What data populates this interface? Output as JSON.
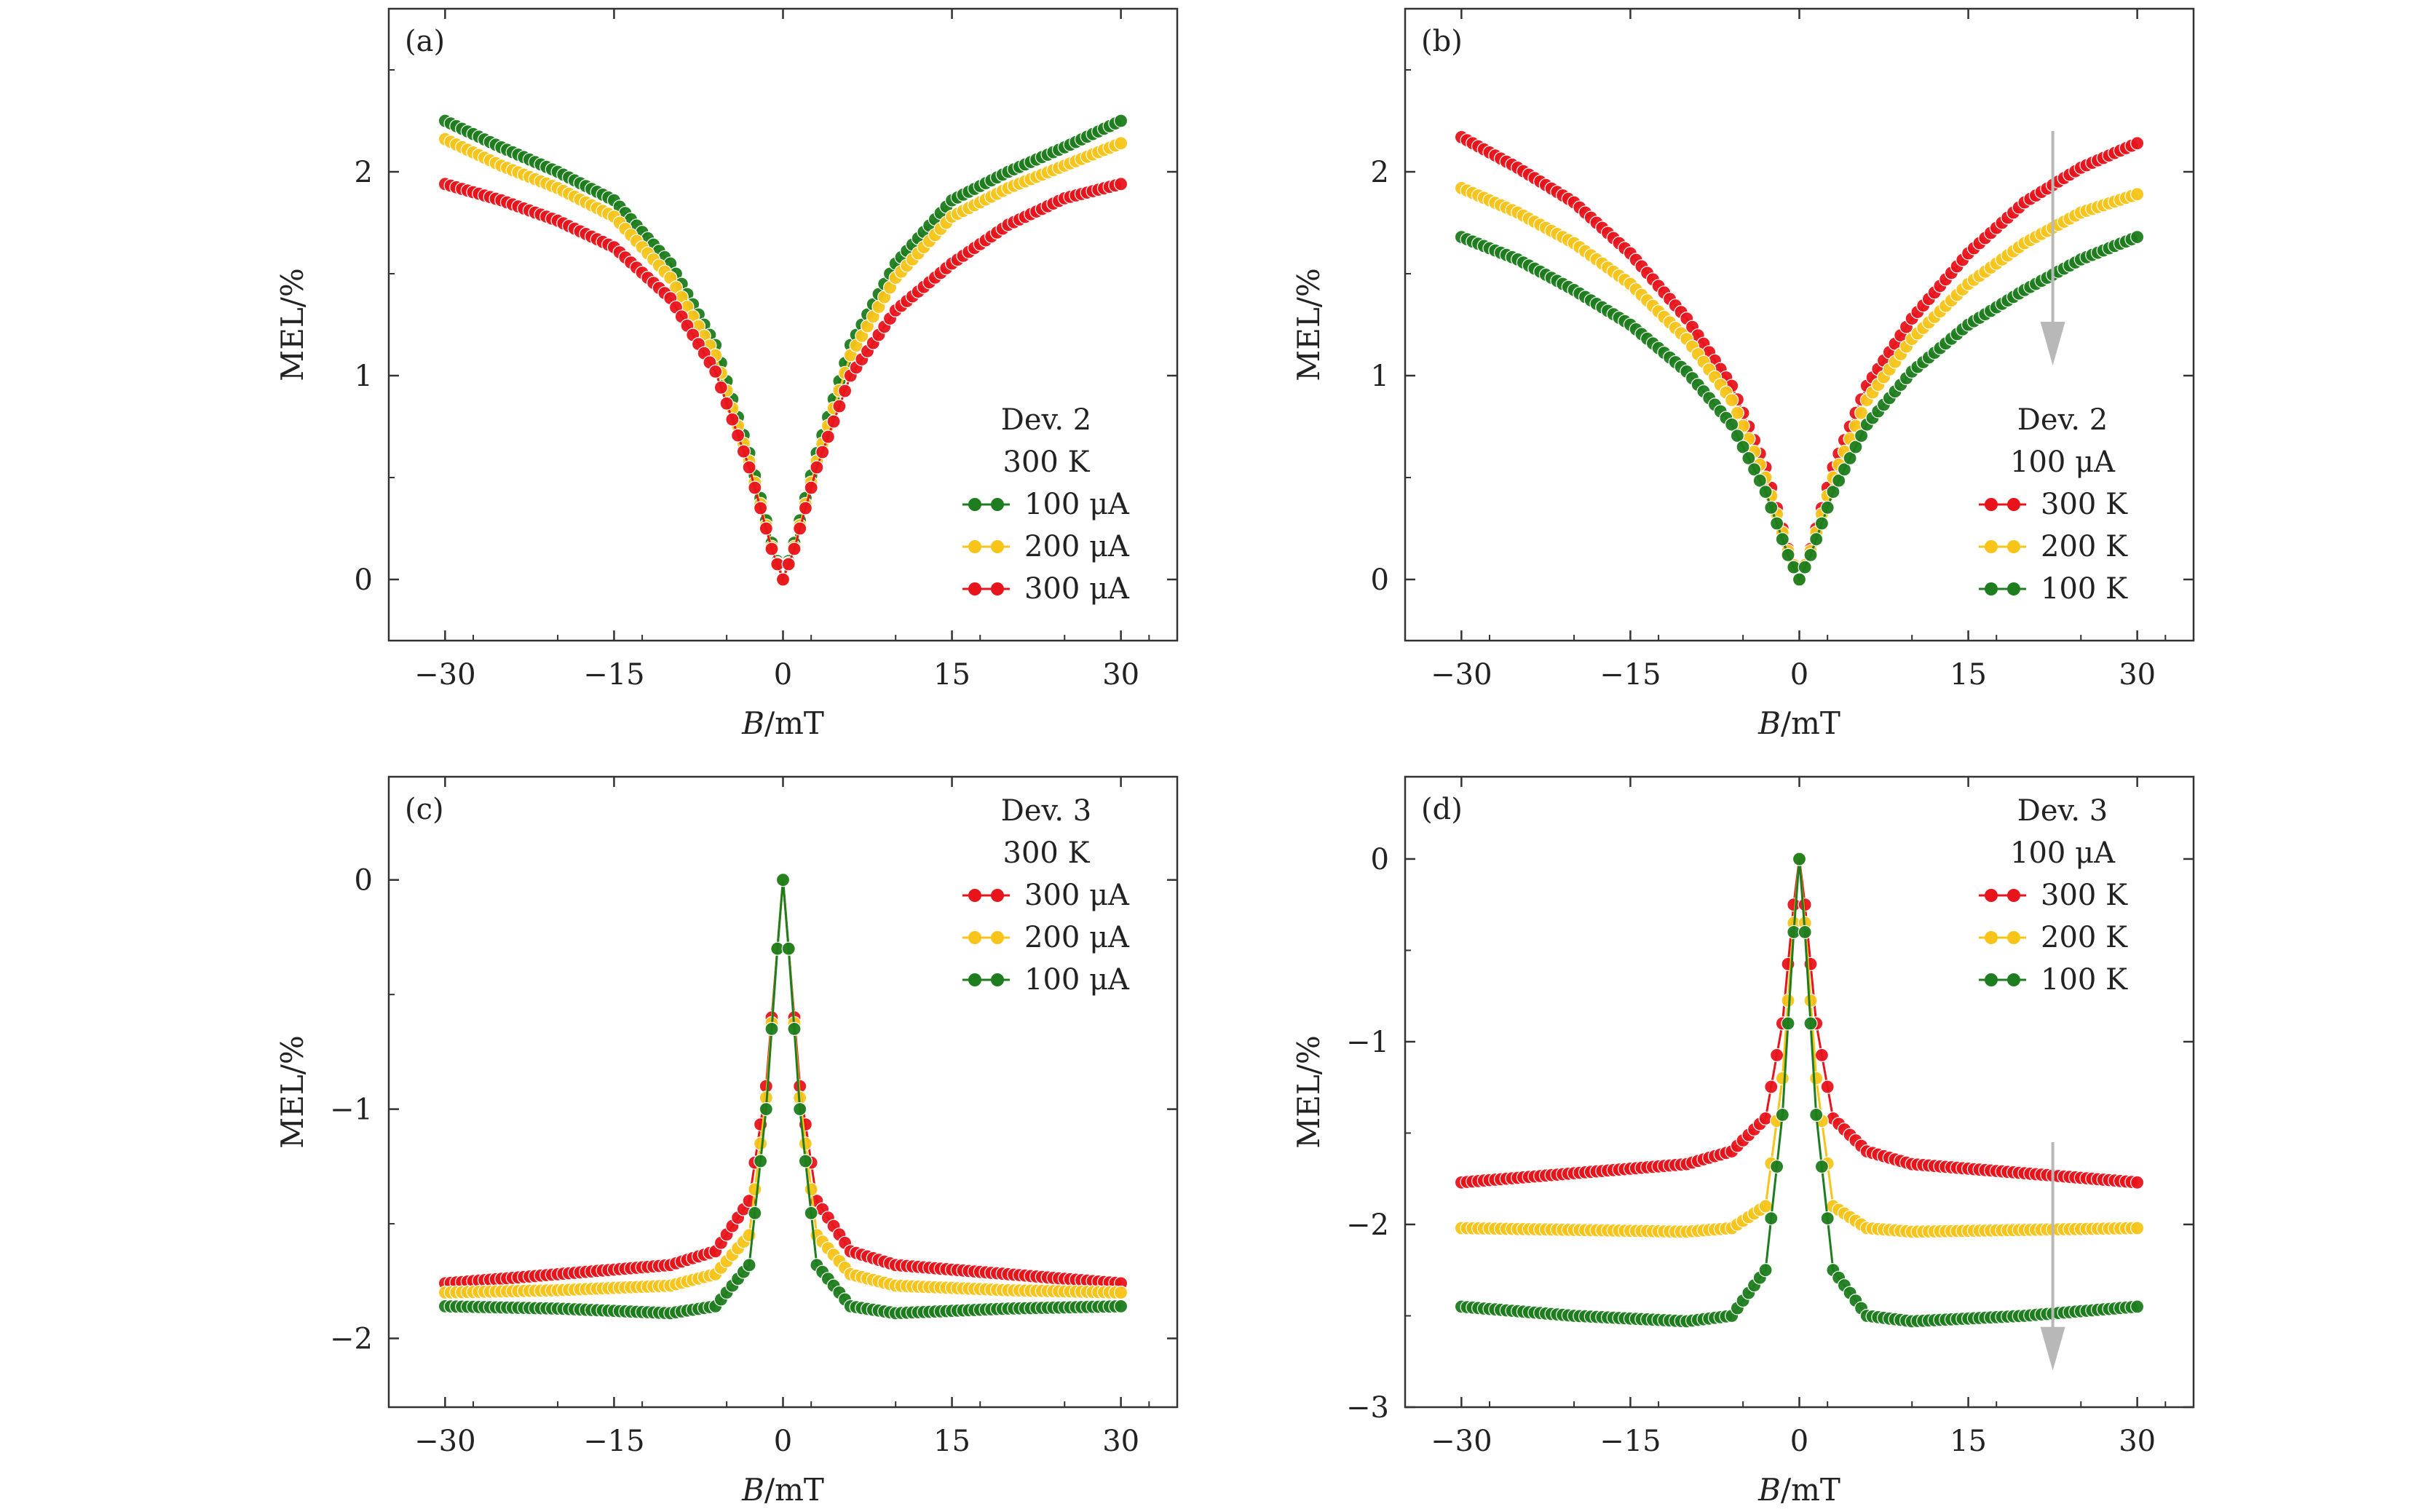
{
  "figure": {
    "series_colors": {
      "red": "#e8141b",
      "yellow": "#f7c41a",
      "green": "#1e7d1e"
    },
    "arrow_color": "#b8b8b8"
  },
  "chart_data": [
    {
      "type": "scatter",
      "panel_label": "(a)",
      "xlabel_italic": "B",
      "xlabel_rest": "/mT",
      "ylabel": "MEL/%",
      "xlim": [
        -35,
        35
      ],
      "ylim": [
        -0.3,
        2.8
      ],
      "xticks": [
        -30,
        -15,
        0,
        15,
        30
      ],
      "xtick_labels": [
        "−30",
        "−15",
        "0",
        "15",
        "30"
      ],
      "yticks": [
        0,
        1,
        2
      ],
      "ytick_labels": [
        "0",
        "1",
        "2"
      ],
      "legend_title": [
        "Dev. 2",
        "300 K"
      ],
      "legend_position": "bottom-right",
      "x": [
        -30,
        -25,
        -20,
        -15,
        -10,
        -6,
        -3,
        -1,
        0,
        1,
        3,
        6,
        10,
        15,
        20,
        25,
        30
      ],
      "series": [
        {
          "name": "100 μA",
          "color": "green",
          "values": [
            2.25,
            2.12,
            2.0,
            1.86,
            1.55,
            1.15,
            0.62,
            0.18,
            0.0,
            0.18,
            0.62,
            1.15,
            1.55,
            1.86,
            2.0,
            2.12,
            2.25
          ]
        },
        {
          "name": "200 μA",
          "color": "yellow",
          "values": [
            2.16,
            2.03,
            1.92,
            1.78,
            1.48,
            1.1,
            0.58,
            0.16,
            0.0,
            0.16,
            0.58,
            1.1,
            1.48,
            1.78,
            1.92,
            2.03,
            2.14
          ]
        },
        {
          "name": "300 μA",
          "color": "red",
          "values": [
            1.94,
            1.86,
            1.76,
            1.63,
            1.38,
            1.02,
            0.55,
            0.15,
            0.0,
            0.15,
            0.55,
            1.0,
            1.32,
            1.55,
            1.74,
            1.87,
            1.94
          ]
        }
      ],
      "arrow": false
    },
    {
      "type": "scatter",
      "panel_label": "(b)",
      "xlabel_italic": "B",
      "xlabel_rest": "/mT",
      "ylabel": "MEL/%",
      "xlim": [
        -35,
        35
      ],
      "ylim": [
        -0.3,
        2.8
      ],
      "xticks": [
        -30,
        -15,
        0,
        15,
        30
      ],
      "xtick_labels": [
        "−30",
        "−15",
        "0",
        "15",
        "30"
      ],
      "yticks": [
        0,
        1,
        2
      ],
      "ytick_labels": [
        "0",
        "1",
        "2"
      ],
      "legend_title": [
        "Dev. 2",
        "100 μA"
      ],
      "legend_position": "bottom-right",
      "x": [
        -30,
        -25,
        -20,
        -15,
        -10,
        -6,
        -3,
        -1,
        0,
        1,
        3,
        6,
        10,
        15,
        20,
        25,
        30
      ],
      "series": [
        {
          "name": "300 K",
          "color": "red",
          "values": [
            2.17,
            2.02,
            1.85,
            1.6,
            1.28,
            0.95,
            0.55,
            0.15,
            0.0,
            0.15,
            0.55,
            0.95,
            1.28,
            1.6,
            1.85,
            2.02,
            2.14
          ]
        },
        {
          "name": "200 K",
          "color": "yellow",
          "values": [
            1.92,
            1.8,
            1.65,
            1.45,
            1.18,
            0.88,
            0.5,
            0.14,
            0.0,
            0.14,
            0.5,
            0.88,
            1.18,
            1.45,
            1.65,
            1.8,
            1.89
          ]
        },
        {
          "name": "100 K",
          "color": "green",
          "values": [
            1.68,
            1.57,
            1.42,
            1.25,
            1.02,
            0.76,
            0.43,
            0.12,
            0.0,
            0.12,
            0.43,
            0.76,
            1.02,
            1.25,
            1.42,
            1.57,
            1.68
          ]
        }
      ],
      "arrow": true,
      "arrow_x": 22.5,
      "arrow_from": 2.2,
      "arrow_to": 1.05
    },
    {
      "type": "scatter",
      "panel_label": "(c)",
      "xlabel_italic": "B",
      "xlabel_rest": "/mT",
      "ylabel": "MEL/%",
      "xlim": [
        -35,
        35
      ],
      "ylim": [
        -2.3,
        0.45
      ],
      "xticks": [
        -30,
        -15,
        0,
        15,
        30
      ],
      "xtick_labels": [
        "−30",
        "−15",
        "0",
        "15",
        "30"
      ],
      "yticks": [
        -2,
        -1,
        0
      ],
      "ytick_labels": [
        "−2",
        "−1",
        "0"
      ],
      "legend_title": [
        "Dev. 3",
        "300 K"
      ],
      "legend_position": "top-right",
      "x": [
        -30,
        -20,
        -10,
        -6,
        -3,
        -1.5,
        -0.5,
        0,
        0.5,
        1.5,
        3,
        6,
        10,
        20,
        30
      ],
      "series": [
        {
          "name": "300 μA",
          "color": "red",
          "values": [
            -1.76,
            -1.72,
            -1.68,
            -1.62,
            -1.4,
            -0.9,
            -0.3,
            0.0,
            -0.3,
            -0.9,
            -1.4,
            -1.62,
            -1.68,
            -1.72,
            -1.76
          ]
        },
        {
          "name": "200 μA",
          "color": "yellow",
          "values": [
            -1.8,
            -1.79,
            -1.77,
            -1.72,
            -1.55,
            -0.95,
            -0.3,
            0.0,
            -0.3,
            -0.95,
            -1.55,
            -1.72,
            -1.77,
            -1.79,
            -1.8
          ]
        },
        {
          "name": "100 μA",
          "color": "green",
          "values": [
            -1.86,
            -1.87,
            -1.89,
            -1.86,
            -1.68,
            -1.0,
            -0.3,
            0.0,
            -0.3,
            -1.0,
            -1.68,
            -1.86,
            -1.89,
            -1.87,
            -1.86
          ]
        }
      ],
      "arrow": false
    },
    {
      "type": "scatter",
      "panel_label": "(d)",
      "xlabel_italic": "B",
      "xlabel_rest": "/mT",
      "ylabel": "MEL/%",
      "xlim": [
        -35,
        35
      ],
      "ylim": [
        -3.0,
        0.45
      ],
      "xticks": [
        -30,
        -15,
        0,
        15,
        30
      ],
      "xtick_labels": [
        "−30",
        "−15",
        "0",
        "15",
        "30"
      ],
      "yticks": [
        -3,
        -2,
        -1,
        0
      ],
      "ytick_labels": [
        "−3",
        "−2",
        "−1",
        "0"
      ],
      "legend_title": [
        "Dev. 3",
        "100 μA"
      ],
      "legend_position": "top-right",
      "x": [
        -30,
        -20,
        -10,
        -6,
        -3,
        -1.5,
        -0.5,
        0,
        0.5,
        1.5,
        3,
        6,
        10,
        20,
        30
      ],
      "series": [
        {
          "name": "300 K",
          "color": "red",
          "values": [
            -1.77,
            -1.72,
            -1.67,
            -1.6,
            -1.42,
            -0.9,
            -0.25,
            0.0,
            -0.25,
            -0.9,
            -1.42,
            -1.6,
            -1.67,
            -1.72,
            -1.77
          ]
        },
        {
          "name": "200 K",
          "color": "yellow",
          "values": [
            -2.02,
            -2.03,
            -2.04,
            -2.02,
            -1.9,
            -1.2,
            -0.35,
            0.0,
            -0.35,
            -1.2,
            -1.9,
            -2.02,
            -2.04,
            -2.03,
            -2.02
          ]
        },
        {
          "name": "100 K",
          "color": "green",
          "values": [
            -2.45,
            -2.5,
            -2.53,
            -2.5,
            -2.25,
            -1.4,
            -0.4,
            0.0,
            -0.4,
            -1.4,
            -2.25,
            -2.5,
            -2.53,
            -2.5,
            -2.45
          ]
        }
      ],
      "arrow": true,
      "arrow_x": 22.5,
      "arrow_from": -1.55,
      "arrow_to": -2.8
    }
  ]
}
